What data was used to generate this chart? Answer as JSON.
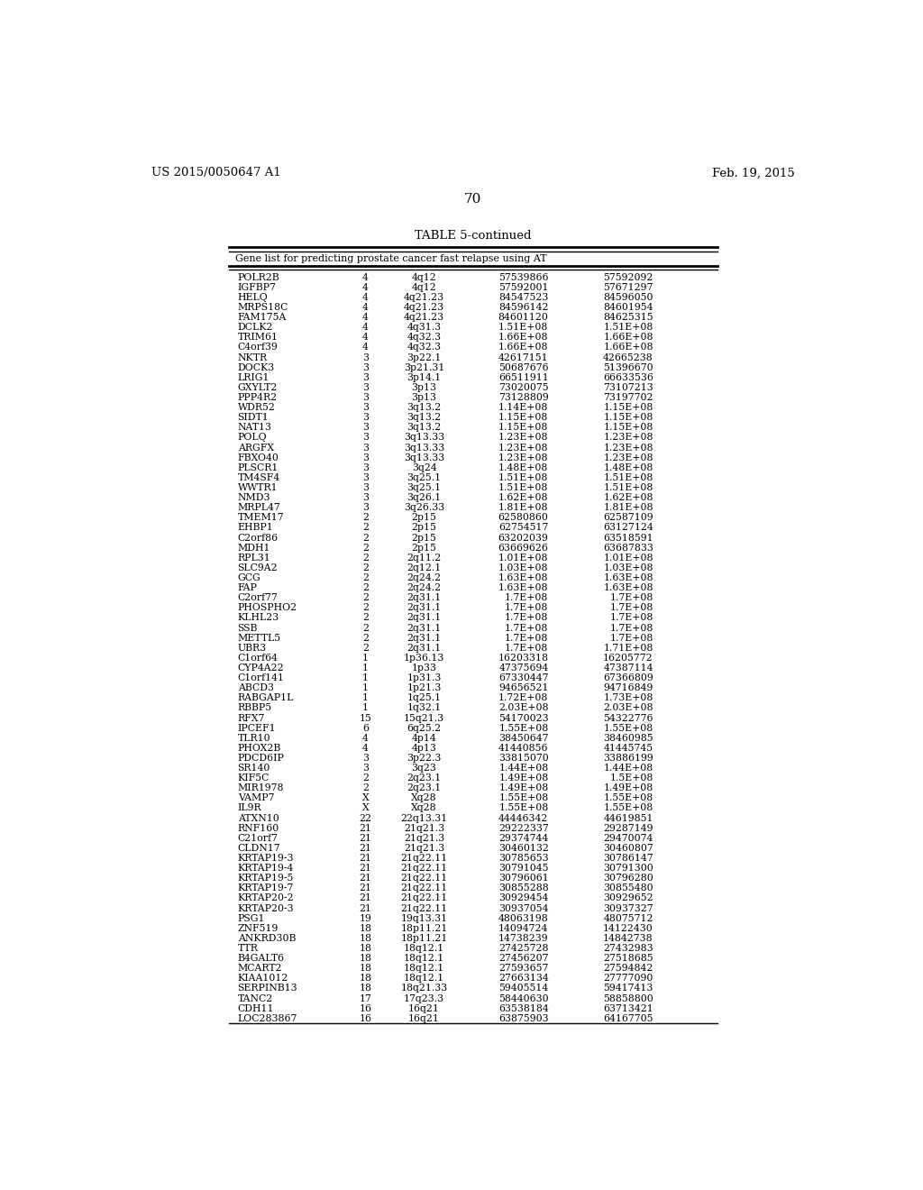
{
  "page_number": "70",
  "patent_number": "US 2015/0050647 A1",
  "patent_date": "Feb. 19, 2015",
  "table_title": "TABLE 5-continued",
  "table_subtitle": "Gene list for predicting prostate cancer fast relapse using AT",
  "rows": [
    [
      "POLR2B",
      "4",
      "4q12",
      "57539866",
      "57592092"
    ],
    [
      "IGFBP7",
      "4",
      "4q12",
      "57592001",
      "57671297"
    ],
    [
      "HELQ",
      "4",
      "4q21.23",
      "84547523",
      "84596050"
    ],
    [
      "MRPS18C",
      "4",
      "4q21.23",
      "84596142",
      "84601954"
    ],
    [
      "FAM175A",
      "4",
      "4q21.23",
      "84601120",
      "84625315"
    ],
    [
      "DCLK2",
      "4",
      "4q31.3",
      "1.51E+08",
      "1.51E+08"
    ],
    [
      "TRIM61",
      "4",
      "4q32.3",
      "1.66E+08",
      "1.66E+08"
    ],
    [
      "C4orf39",
      "4",
      "4q32.3",
      "1.66E+08",
      "1.66E+08"
    ],
    [
      "NKTR",
      "3",
      "3p22.1",
      "42617151",
      "42665238"
    ],
    [
      "DOCK3",
      "3",
      "3p21.31",
      "50687676",
      "51396670"
    ],
    [
      "LRIG1",
      "3",
      "3p14.1",
      "66511911",
      "66633536"
    ],
    [
      "GXYLT2",
      "3",
      "3p13",
      "73020075",
      "73107213"
    ],
    [
      "PPP4R2",
      "3",
      "3p13",
      "73128809",
      "73197702"
    ],
    [
      "WDR52",
      "3",
      "3q13.2",
      "1.14E+08",
      "1.15E+08"
    ],
    [
      "SIDT1",
      "3",
      "3q13.2",
      "1.15E+08",
      "1.15E+08"
    ],
    [
      "NAT13",
      "3",
      "3q13.2",
      "1.15E+08",
      "1.15E+08"
    ],
    [
      "POLQ",
      "3",
      "3q13.33",
      "1.23E+08",
      "1.23E+08"
    ],
    [
      "ARGFX",
      "3",
      "3q13.33",
      "1.23E+08",
      "1.23E+08"
    ],
    [
      "FBXO40",
      "3",
      "3q13.33",
      "1.23E+08",
      "1.23E+08"
    ],
    [
      "PLSCR1",
      "3",
      "3q24",
      "1.48E+08",
      "1.48E+08"
    ],
    [
      "TM4SF4",
      "3",
      "3q25.1",
      "1.51E+08",
      "1.51E+08"
    ],
    [
      "WWTR1",
      "3",
      "3q25.1",
      "1.51E+08",
      "1.51E+08"
    ],
    [
      "NMD3",
      "3",
      "3q26.1",
      "1.62E+08",
      "1.62E+08"
    ],
    [
      "MRPL47",
      "3",
      "3q26.33",
      "1.81E+08",
      "1.81E+08"
    ],
    [
      "TMEM17",
      "2",
      "2p15",
      "62580860",
      "62587109"
    ],
    [
      "EHBP1",
      "2",
      "2p15",
      "62754517",
      "63127124"
    ],
    [
      "C2orf86",
      "2",
      "2p15",
      "63202039",
      "63518591"
    ],
    [
      "MDH1",
      "2",
      "2p15",
      "63669626",
      "63687833"
    ],
    [
      "RPL31",
      "2",
      "2q11.2",
      "1.01E+08",
      "1.01E+08"
    ],
    [
      "SLC9A2",
      "2",
      "2q12.1",
      "1.03E+08",
      "1.03E+08"
    ],
    [
      "GCG",
      "2",
      "2q24.2",
      "1.63E+08",
      "1.63E+08"
    ],
    [
      "FAP",
      "2",
      "2q24.2",
      "1.63E+08",
      "1.63E+08"
    ],
    [
      "C2orf77",
      "2",
      "2q31.1",
      "1.7E+08",
      "1.7E+08"
    ],
    [
      "PHOSPHO2",
      "2",
      "2q31.1",
      "1.7E+08",
      "1.7E+08"
    ],
    [
      "KLHL23",
      "2",
      "2q31.1",
      "1.7E+08",
      "1.7E+08"
    ],
    [
      "SSB",
      "2",
      "2q31.1",
      "1.7E+08",
      "1.7E+08"
    ],
    [
      "METTL5",
      "2",
      "2q31.1",
      "1.7E+08",
      "1.7E+08"
    ],
    [
      "UBR3",
      "2",
      "2q31.1",
      "1.7E+08",
      "1.71E+08"
    ],
    [
      "C1orf64",
      "1",
      "1p36.13",
      "16203318",
      "16205772"
    ],
    [
      "CYP4A22",
      "1",
      "1p33",
      "47375694",
      "47387114"
    ],
    [
      "C1orf141",
      "1",
      "1p31.3",
      "67330447",
      "67366809"
    ],
    [
      "ABCD3",
      "1",
      "1p21.3",
      "94656521",
      "94716849"
    ],
    [
      "RABGAP1L",
      "1",
      "1q25.1",
      "1.72E+08",
      "1.73E+08"
    ],
    [
      "RBBP5",
      "1",
      "1q32.1",
      "2.03E+08",
      "2.03E+08"
    ],
    [
      "RFX7",
      "15",
      "15q21.3",
      "54170023",
      "54322776"
    ],
    [
      "IPCEF1",
      "6",
      "6q25.2",
      "1.55E+08",
      "1.55E+08"
    ],
    [
      "TLR10",
      "4",
      "4p14",
      "38450647",
      "38460985"
    ],
    [
      "PHOX2B",
      "4",
      "4p13",
      "41440856",
      "41445745"
    ],
    [
      "PDCD6IP",
      "3",
      "3p22.3",
      "33815070",
      "33886199"
    ],
    [
      "SR140",
      "3",
      "3q23",
      "1.44E+08",
      "1.44E+08"
    ],
    [
      "KIF5C",
      "2",
      "2q23.1",
      "1.49E+08",
      "1.5E+08"
    ],
    [
      "MIR1978",
      "2",
      "2q23.1",
      "1.49E+08",
      "1.49E+08"
    ],
    [
      "VAMP7",
      "X",
      "Xq28",
      "1.55E+08",
      "1.55E+08"
    ],
    [
      "IL9R",
      "X",
      "Xq28",
      "1.55E+08",
      "1.55E+08"
    ],
    [
      "ATXN10",
      "22",
      "22q13.31",
      "44446342",
      "44619851"
    ],
    [
      "RNF160",
      "21",
      "21q21.3",
      "29222337",
      "29287149"
    ],
    [
      "C21orf7",
      "21",
      "21q21.3",
      "29374744",
      "29470074"
    ],
    [
      "CLDN17",
      "21",
      "21q21.3",
      "30460132",
      "30460807"
    ],
    [
      "KRTAP19-3",
      "21",
      "21q22.11",
      "30785653",
      "30786147"
    ],
    [
      "KRTAP19-4",
      "21",
      "21q22.11",
      "30791045",
      "30791300"
    ],
    [
      "KRTAP19-5",
      "21",
      "21q22.11",
      "30796061",
      "30796280"
    ],
    [
      "KRTAP19-7",
      "21",
      "21q22.11",
      "30855288",
      "30855480"
    ],
    [
      "KRTAP20-2",
      "21",
      "21q22.11",
      "30929454",
      "30929652"
    ],
    [
      "KRTAP20-3",
      "21",
      "21q22.11",
      "30937054",
      "30937327"
    ],
    [
      "PSG1",
      "19",
      "19q13.31",
      "48063198",
      "48075712"
    ],
    [
      "ZNF519",
      "18",
      "18p11.21",
      "14094724",
      "14122430"
    ],
    [
      "ANKRD30B",
      "18",
      "18p11.21",
      "14738239",
      "14842738"
    ],
    [
      "TTR",
      "18",
      "18q12.1",
      "27425728",
      "27432983"
    ],
    [
      "B4GALT6",
      "18",
      "18q12.1",
      "27456207",
      "27518685"
    ],
    [
      "MCART2",
      "18",
      "18q12.1",
      "27593657",
      "27594842"
    ],
    [
      "KIAA1012",
      "18",
      "18q12.1",
      "27663134",
      "27777090"
    ],
    [
      "SERPINB13",
      "18",
      "18q21.33",
      "59405514",
      "59417413"
    ],
    [
      "TANC2",
      "17",
      "17q23.3",
      "58440630",
      "58858800"
    ],
    [
      "CDH11",
      "16",
      "16q21",
      "63538184",
      "63713421"
    ],
    [
      "LOC283867",
      "16",
      "16q21",
      "63875903",
      "64167705"
    ]
  ],
  "bg_color": "#ffffff",
  "text_color": "#000000"
}
